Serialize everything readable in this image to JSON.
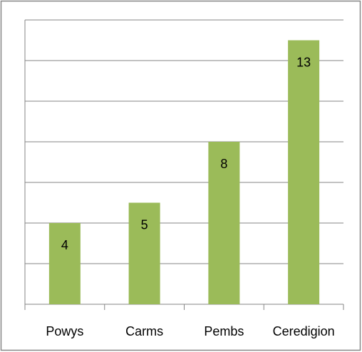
{
  "chart_data": {
    "type": "bar",
    "categories": [
      "Powys",
      "Carms",
      "Pembs",
      "Ceredigion"
    ],
    "values": [
      4,
      5,
      8,
      13
    ],
    "color": "#9bbb59",
    "ylim": [
      0,
      14
    ],
    "yticks": [
      0,
      2,
      4,
      6,
      8,
      10,
      12,
      14
    ],
    "grid": true
  }
}
